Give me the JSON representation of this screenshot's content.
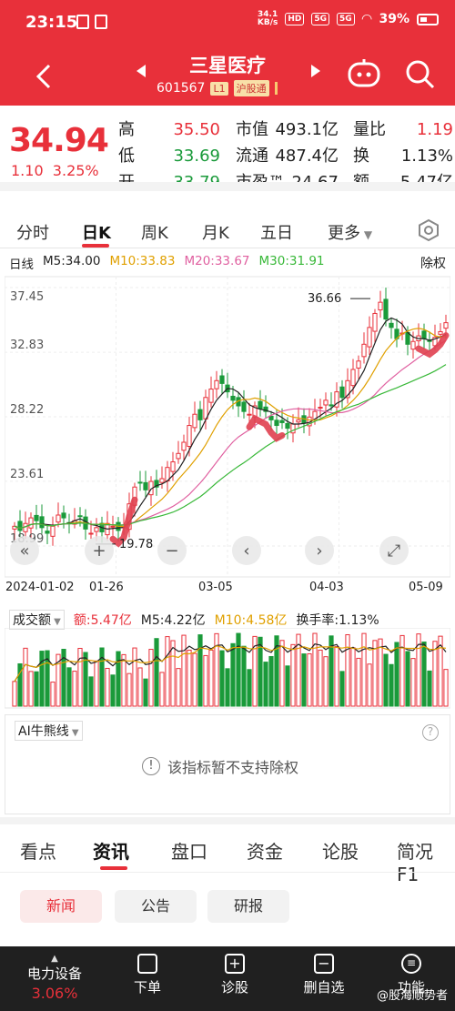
{
  "status": {
    "time": "23:15",
    "speed": "34.1",
    "speed_unit": "KB/s",
    "hd": "HD",
    "net1": "5G",
    "net2": "5G",
    "battery": "39%"
  },
  "nav": {
    "stock_name": "三星医疗",
    "code": "601567",
    "level": "L1",
    "hk": "沪股通"
  },
  "quote": {
    "price": "34.94",
    "change": "1.10",
    "change_pct": "3.25%",
    "high_label": "高",
    "high": "35.50",
    "low_label": "低",
    "low": "33.69",
    "open_label": "开",
    "open": "33.79",
    "mcap_label": "市值",
    "mcap": "493.1亿",
    "float_label": "流通",
    "float": "487.4亿",
    "pe_label": "市盈™",
    "pe": "24.67",
    "vr_label": "量比",
    "vr": "1.19",
    "turn_label": "换",
    "turn": "1.13%",
    "amt_label": "额",
    "amt": "5.47亿"
  },
  "tabs": [
    "分时",
    "日K",
    "周K",
    "月K",
    "五日",
    "更多"
  ],
  "active_tab": "日K",
  "ma": {
    "label": "日线",
    "m5": "M5:34.00",
    "m10": "M10:33.83",
    "m20": "M20:33.67",
    "m30": "M30:31.91",
    "right": "除权"
  },
  "chart_data": {
    "type": "candlestick",
    "y_ticks": [
      "37.45",
      "32.83",
      "28.22",
      "23.61",
      "18.99"
    ],
    "ylim": [
      18.99,
      37.45
    ],
    "x_labels": [
      "2024-01-02",
      "01-26",
      "03-05",
      "04-03",
      "05-09"
    ],
    "annotations": {
      "max": "36.66",
      "min": "19.78"
    },
    "approx_close": [
      20.4,
      20.1,
      20.6,
      21.0,
      20.8,
      20.3,
      19.9,
      20.4,
      21.2,
      21.0,
      20.6,
      20.8,
      21.1,
      20.2,
      19.9,
      20.3,
      20.0,
      20.6,
      20.4,
      20.1,
      20.5,
      22.0,
      23.2,
      23.5,
      23.0,
      23.6,
      23.2,
      23.8,
      24.6,
      25.0,
      25.6,
      26.4,
      27.6,
      28.4,
      28.0,
      29.6,
      30.2,
      30.8,
      30.6,
      30.0,
      29.4,
      29.0,
      28.6,
      28.4,
      29.0,
      28.8,
      28.6,
      28.0,
      27.6,
      27.8,
      27.4,
      27.7,
      28.0,
      27.8,
      28.2,
      28.6,
      28.9,
      29.4,
      29.0,
      30.0,
      29.6,
      30.8,
      31.6,
      32.2,
      33.4,
      34.6,
      35.6,
      36.4,
      35.2,
      34.6,
      33.8,
      34.2,
      33.4,
      33.6,
      34.0,
      33.8,
      33.6,
      33.9,
      34.3,
      34.94
    ],
    "indicators": {
      "vol_label": "成交额",
      "amt": "额:5.47亿",
      "m5": "M5:4.22亿",
      "m10": "M10:4.58亿",
      "turnover": "换手率:1.13%"
    }
  },
  "controls": {
    "zoom_out": "缩小",
    "zoom_in": "放大",
    "prev": "上一个",
    "next": "下一个",
    "full": "全屏"
  },
  "ai": {
    "title": "AI牛熊线",
    "msg": "该指标暂不支持除权"
  },
  "bottom_tabs": [
    "看点",
    "资讯",
    "盘口",
    "资金",
    "论股",
    "简况F1"
  ],
  "chips": [
    "新闻",
    "公告",
    "研报"
  ],
  "bottom_bar": {
    "left_label": "电力设备",
    "left_pct": "3.06%",
    "items": [
      "下单",
      "诊股",
      "删自选",
      "功能"
    ]
  },
  "watermark": "@股海顺势者"
}
